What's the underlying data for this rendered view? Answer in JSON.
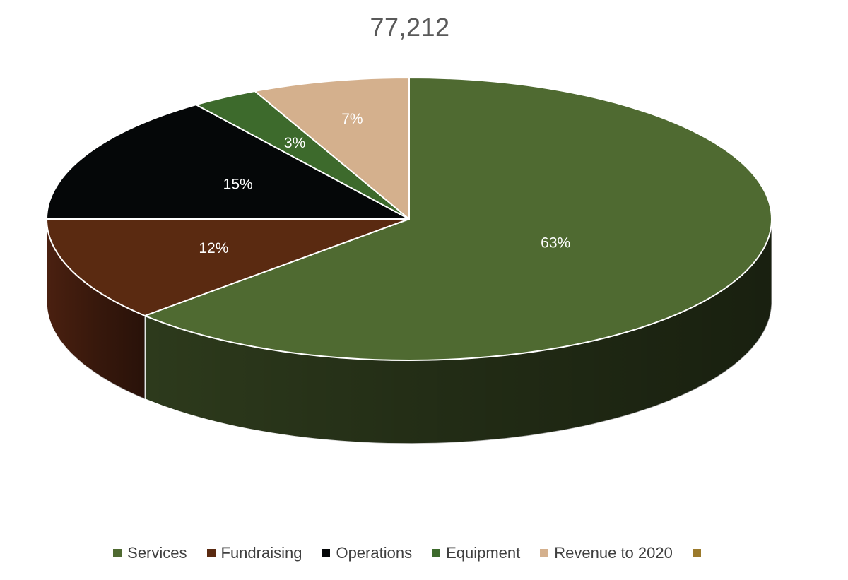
{
  "chart_data": {
    "type": "pie",
    "title": "77,212",
    "categories": [
      "Services",
      "Fundraising",
      "Operations",
      "Equipment",
      "Revenue to 2020",
      ""
    ],
    "values": [
      63,
      12,
      15,
      3,
      7,
      0
    ],
    "value_labels": [
      "63%",
      "12%",
      "15%",
      "3%",
      "7%",
      ""
    ],
    "units": "percent",
    "colors": [
      "#4f6a31",
      "#5a2a11",
      "#050708",
      "#3d6a2c",
      "#d4b08d",
      "#9b7a2c"
    ],
    "side_colors": [
      "#2d3a1c",
      "#4a2010",
      "#050708",
      "#2d4d20",
      "#b8946f",
      "#7a5e20"
    ],
    "start_angle_deg": 90,
    "direction": "clockwise",
    "legend_position": "bottom",
    "style": "3d"
  }
}
